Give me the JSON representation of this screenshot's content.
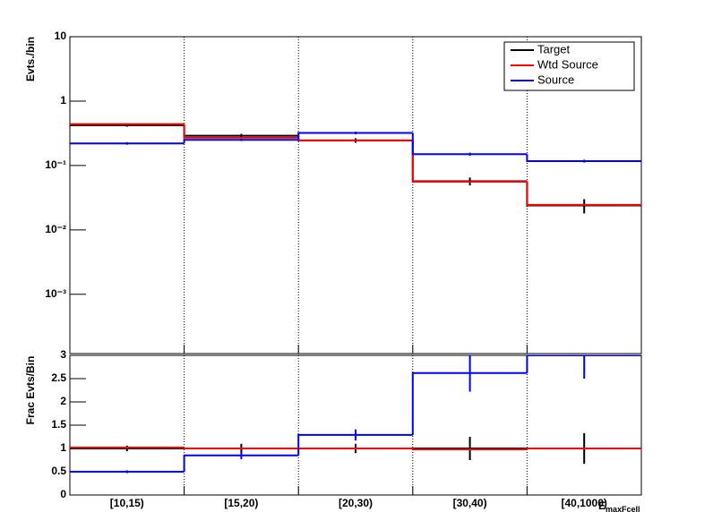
{
  "chart_data": [
    {
      "type": "step",
      "ylabel": "Evts./bin",
      "log": true,
      "ylim": [
        0.00012,
        10
      ],
      "yticks": [
        10,
        1,
        {
          "value": 0.1,
          "label": "10⁻¹"
        },
        {
          "value": 0.01,
          "label": "10⁻²"
        },
        {
          "value": 0.001,
          "label": "10⁻³"
        }
      ],
      "legend": "top-right",
      "grid": "x",
      "series": [
        {
          "name": "Target",
          "color": "#000000",
          "values": [
            0.42,
            0.29,
            0.245,
            0.057,
            0.024
          ],
          "errors": [
            0.02,
            0.02,
            0.02,
            0.008,
            0.006
          ]
        },
        {
          "name": "Wtd Source",
          "color": "#ff0000",
          "values": [
            0.44,
            0.27,
            0.245,
            0.056,
            0.0245
          ]
        },
        {
          "name": "Source",
          "color": "#0000ff",
          "values": [
            0.22,
            0.25,
            0.32,
            0.15,
            0.117
          ],
          "errors": [
            0.01,
            0.01,
            0.015,
            0.008,
            0.006
          ]
        }
      ]
    },
    {
      "type": "step",
      "ylabel": "Frac Evts/Bin",
      "xlabel": "E",
      "xlabel_subscript": "maxFcell",
      "categories": [
        "[10,15)",
        "[15,20)",
        "[20,30)",
        "[30,40)",
        "[40,1000)"
      ],
      "ylim": [
        0,
        3
      ],
      "yticks": [
        0,
        0.5,
        1,
        1.5,
        2,
        2.5,
        3
      ],
      "grid": "x",
      "series": [
        {
          "name": "Target",
          "color": "#000000",
          "values": [
            1,
            1,
            1,
            1,
            1
          ],
          "errors": [
            0.06,
            0.1,
            0.1,
            0.25,
            0.33
          ]
        },
        {
          "name": "Wtd Source",
          "color": "#ff0000",
          "values": [
            1.02,
            1.0,
            1.0,
            0.98,
            1.0
          ]
        },
        {
          "name": "Source",
          "color": "#0000ff",
          "values": [
            0.5,
            0.85,
            1.29,
            2.62,
            3.0
          ],
          "errors": [
            0.03,
            0.08,
            0.12,
            0.4,
            0.5
          ]
        }
      ]
    }
  ]
}
